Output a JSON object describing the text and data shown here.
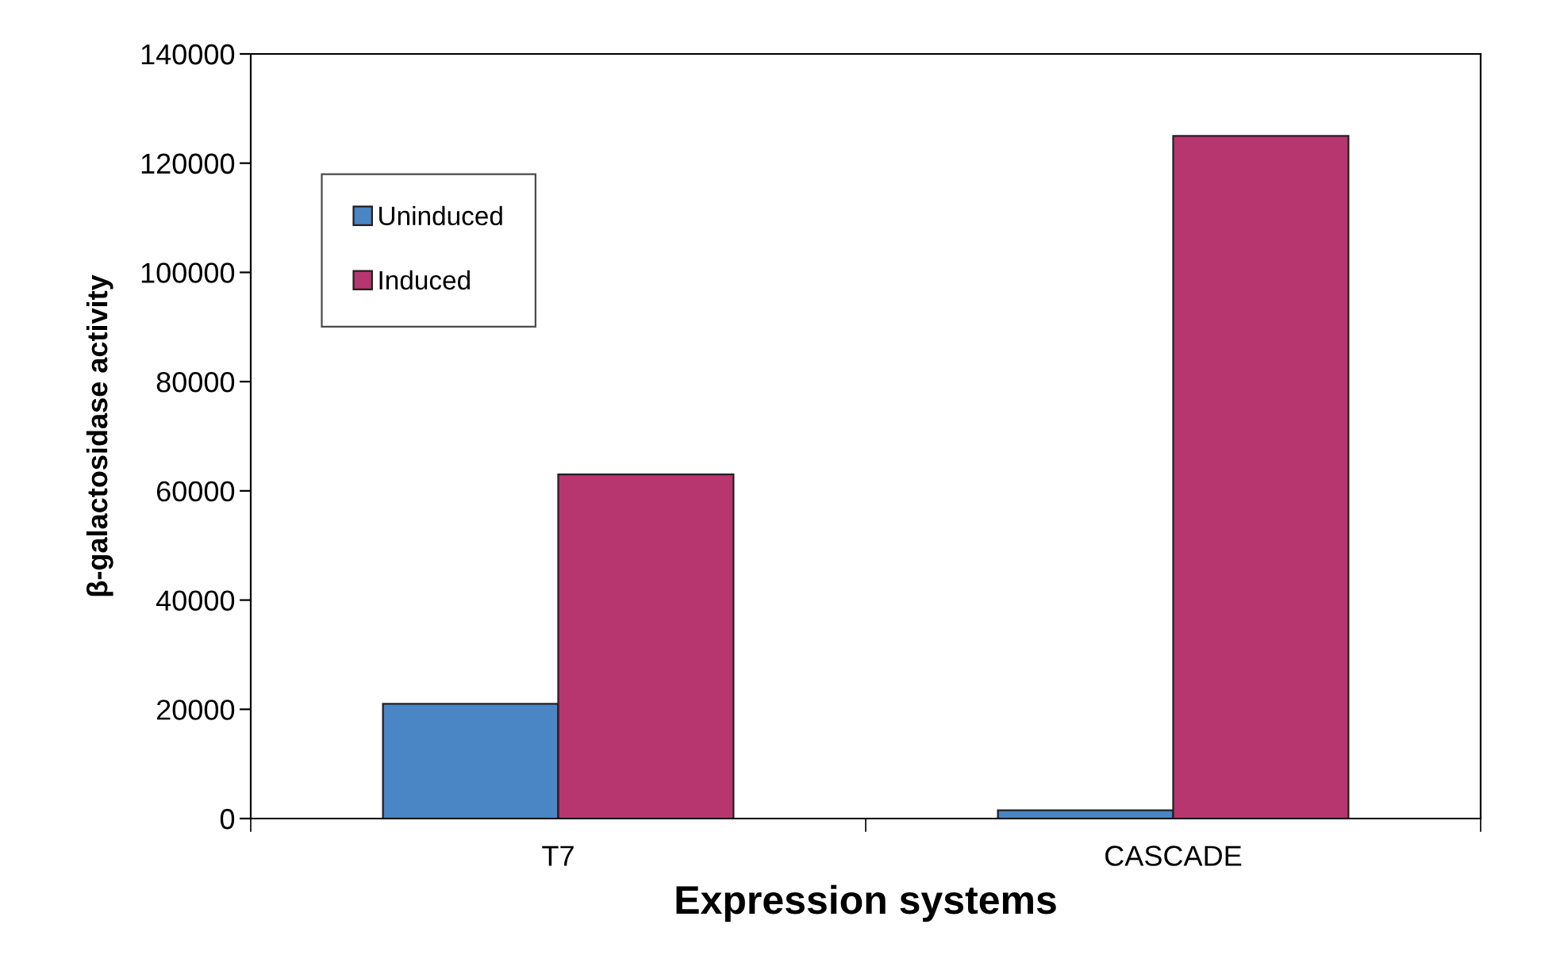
{
  "chart_data": {
    "type": "bar",
    "xlabel": "Expression systems",
    "ylabel": "β-galactosidase activity",
    "categories": [
      "T7",
      "CASCADE"
    ],
    "series": [
      {
        "name": "Uninduced",
        "color": "#4a86c5",
        "values": [
          21000,
          1500
        ]
      },
      {
        "name": "Induced",
        "color": "#b83670",
        "values": [
          63000,
          125000
        ]
      }
    ],
    "ylim": [
      0,
      140000
    ],
    "yticks": [
      0,
      20000,
      40000,
      60000,
      80000,
      100000,
      120000,
      140000
    ],
    "grid": false,
    "legend": "top left"
  }
}
